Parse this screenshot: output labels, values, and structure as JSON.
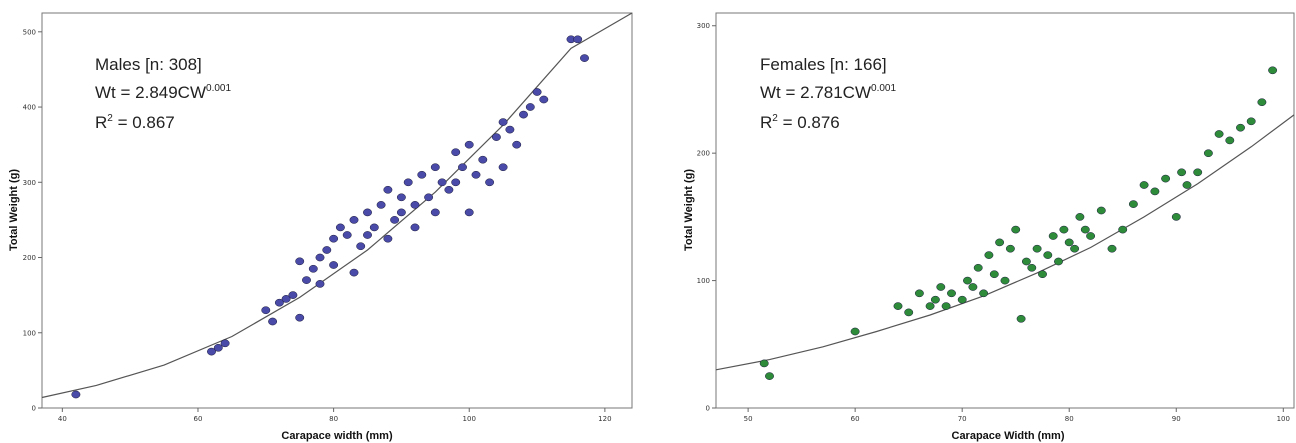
{
  "chart_data": [
    {
      "type": "scatter",
      "xlabel": "Carapace width (mm)",
      "ylabel": "Total Weight (g)",
      "xlim": [
        37,
        124
      ],
      "ylim": [
        0,
        525
      ],
      "xticks": [
        40,
        60,
        80,
        100,
        120
      ],
      "yticks": [
        0,
        100,
        200,
        300,
        400,
        500
      ],
      "grid": false,
      "annotation": {
        "line1": "Males [n: 308]",
        "line2_main": "Wt = 2.849CW",
        "line2_sup": "0.001",
        "line3_main": "R",
        "line3_sup": "2",
        "line3_rest": " = 0.867"
      },
      "marker_color": "#4a4aa8",
      "curve": {
        "x": [
          37,
          45,
          55,
          65,
          75,
          85,
          95,
          105,
          115,
          124
        ],
        "y": [
          14,
          30,
          57,
          95,
          147,
          210,
          287,
          376,
          478,
          542
        ]
      },
      "points": {
        "x": [
          42,
          62,
          63,
          64,
          70,
          71,
          72,
          73,
          74,
          75,
          75,
          76,
          77,
          78,
          78,
          79,
          80,
          80,
          81,
          82,
          83,
          83,
          84,
          85,
          85,
          86,
          87,
          88,
          88,
          89,
          90,
          90,
          91,
          92,
          92,
          93,
          94,
          95,
          95,
          96,
          97,
          98,
          98,
          99,
          100,
          100,
          101,
          102,
          103,
          104,
          105,
          105,
          106,
          107,
          108,
          109,
          110,
          111,
          115,
          116,
          117
        ],
        "y": [
          18,
          75,
          80,
          86,
          130,
          115,
          140,
          145,
          150,
          195,
          120,
          170,
          185,
          165,
          200,
          210,
          225,
          190,
          240,
          230,
          180,
          250,
          215,
          260,
          230,
          240,
          270,
          225,
          290,
          250,
          280,
          260,
          300,
          270,
          240,
          310,
          280,
          320,
          260,
          300,
          290,
          340,
          300,
          320,
          260,
          350,
          310,
          330,
          300,
          360,
          380,
          320,
          370,
          350,
          390,
          400,
          420,
          410,
          490,
          490,
          465
        ]
      }
    },
    {
      "type": "scatter",
      "xlabel": "Carapace Width (mm)",
      "ylabel": "Total Weight (g)",
      "xlim": [
        47,
        101
      ],
      "ylim": [
        0,
        310
      ],
      "xticks": [
        50,
        60,
        70,
        80,
        90,
        100
      ],
      "yticks": [
        0,
        100,
        200,
        300
      ],
      "grid": false,
      "annotation": {
        "line1": "Females [n: 166]",
        "line2_main": "Wt = 2.781CW",
        "line2_sup": "0.001",
        "line3_main": "R",
        "line3_sup": "2",
        "line3_rest": " = 0.876"
      },
      "marker_color": "#2e8b3a",
      "curve": {
        "x": [
          47,
          52,
          57,
          62,
          67,
          72,
          77,
          82,
          87,
          92,
          97,
          101
        ],
        "y": [
          30,
          38,
          48,
          60,
          73,
          88,
          106,
          126,
          150,
          176,
          205,
          230
        ]
      },
      "points": {
        "x": [
          51.5,
          52,
          60,
          64,
          65,
          66,
          67,
          67.5,
          68,
          68.5,
          69,
          70,
          70.5,
          71,
          71.5,
          72,
          72.5,
          73,
          73.5,
          74,
          74.5,
          75,
          75.5,
          76,
          76.5,
          77,
          77.5,
          78,
          78.5,
          79,
          79.5,
          80,
          80.5,
          81,
          81.5,
          82,
          83,
          84,
          85,
          86,
          87,
          88,
          89,
          90,
          90.5,
          91,
          92,
          93,
          94,
          95,
          96,
          97,
          98,
          99
        ],
        "y": [
          35,
          25,
          60,
          80,
          75,
          90,
          80,
          85,
          95,
          80,
          90,
          85,
          100,
          95,
          110,
          90,
          120,
          105,
          130,
          100,
          125,
          140,
          70,
          115,
          110,
          125,
          105,
          120,
          135,
          115,
          140,
          130,
          125,
          150,
          140,
          135,
          155,
          125,
          140,
          160,
          175,
          170,
          180,
          150,
          185,
          175,
          185,
          200,
          215,
          210,
          220,
          225,
          240,
          265
        ]
      }
    }
  ]
}
